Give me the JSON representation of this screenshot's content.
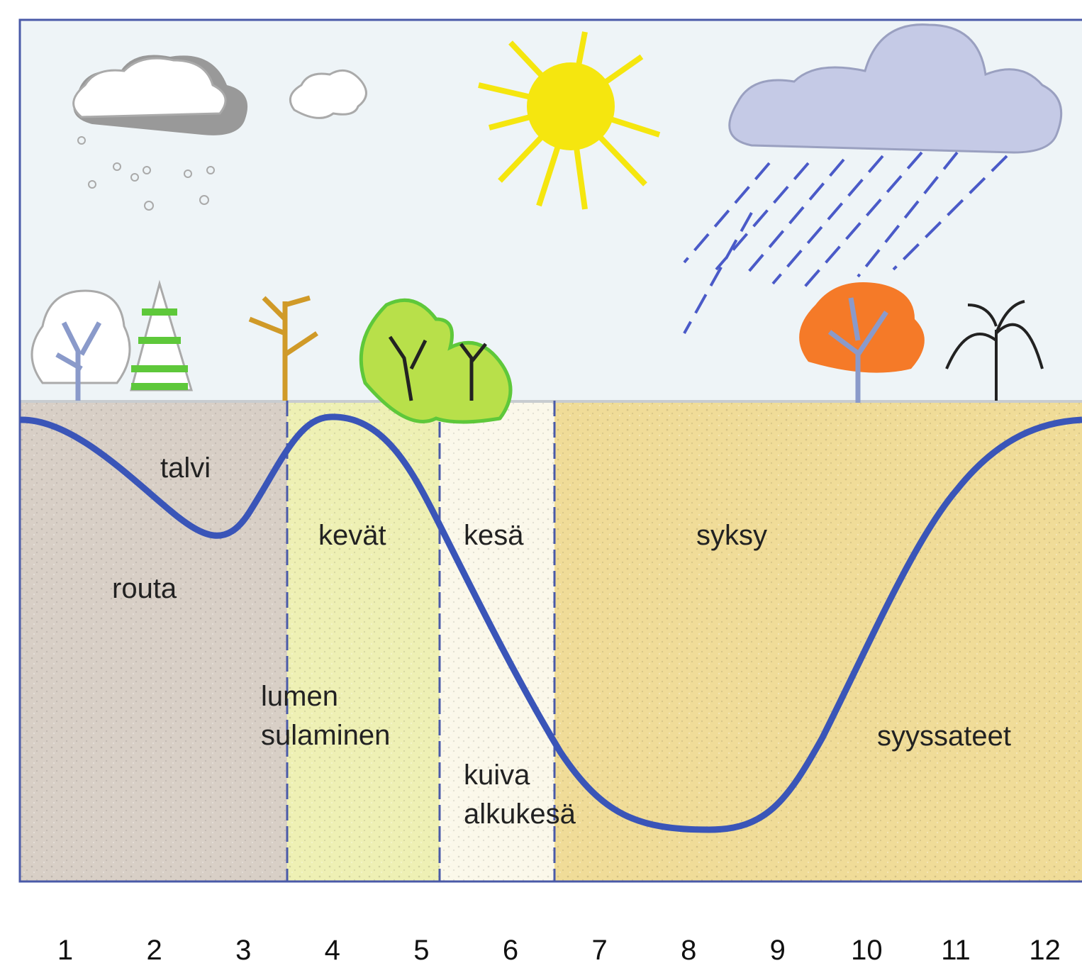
{
  "labels": {
    "talvi": "talvi",
    "kevat": "kevät",
    "kesa": "kesä",
    "syksy": "syksy",
    "routa": "routa",
    "lumen_sulaminen": [
      "lumen",
      "sulaminen"
    ],
    "kuiva_alkukesa": [
      "kuiva",
      "alkukesä"
    ],
    "syyssateet": "syyssateet"
  },
  "months": [
    1,
    2,
    3,
    4,
    5,
    6,
    7,
    8,
    9,
    10,
    11,
    12
  ]
}
